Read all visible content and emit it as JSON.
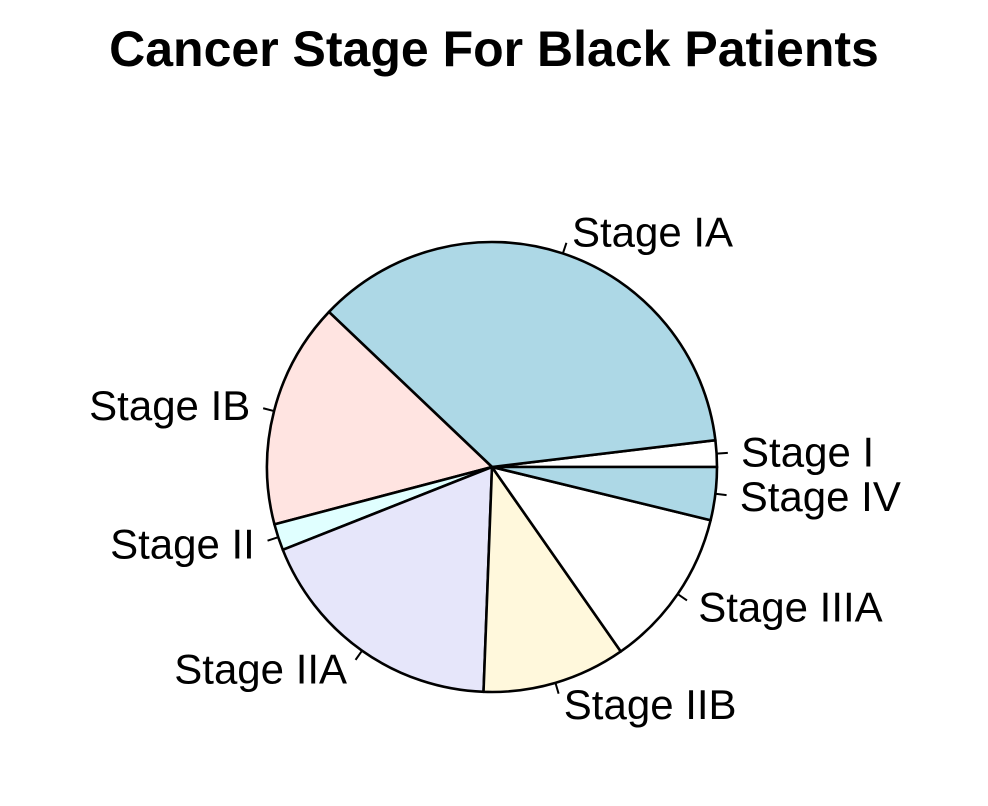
{
  "chart_data": {
    "type": "pie",
    "title": "Cancer Stage For Black Patients",
    "direction": "counterclockwise",
    "start": "3 o'clock",
    "slices": [
      {
        "label": "Stage I",
        "value": 1.9,
        "color": "#ffffff"
      },
      {
        "label": "Stage IA",
        "value": 36.0,
        "color": "#add8e6"
      },
      {
        "label": "Stage IB",
        "value": 16.2,
        "color": "#ffe4e1"
      },
      {
        "label": "Stage II",
        "value": 1.9,
        "color": "#e0ffff"
      },
      {
        "label": "Stage IIA",
        "value": 18.4,
        "color": "#e6e6fa"
      },
      {
        "label": "Stage IIB",
        "value": 10.3,
        "color": "#fff8dc"
      },
      {
        "label": "Stage IIIA",
        "value": 11.5,
        "color": "#ffffff"
      },
      {
        "label": "Stage IV",
        "value": 3.8,
        "color": "#add8e6"
      }
    ]
  }
}
